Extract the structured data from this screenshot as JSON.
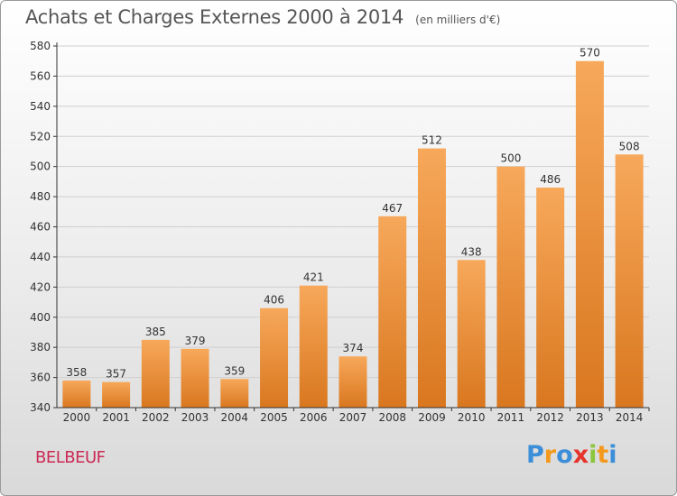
{
  "title": "Achats et Charges Externes 2000 à 2014",
  "unit_label": "(en milliers d'€)",
  "place_name": "BELBEUF",
  "logo": {
    "letters": [
      "P",
      "r",
      "o",
      "x",
      "i",
      "t",
      "i"
    ],
    "colors": [
      "#3b8ed8",
      "#f39a1e",
      "#3b8ed8",
      "#e5342b",
      "#8cc63e",
      "#f39a1e",
      "#3b8ed8"
    ]
  },
  "colors": {
    "bar_light": "#f7a85a",
    "bar_dark": "#d9771f",
    "grid": "#cfcfcf",
    "axis": "#333333"
  },
  "chart_data": {
    "type": "bar",
    "categories": [
      "2000",
      "2001",
      "2002",
      "2003",
      "2004",
      "2005",
      "2006",
      "2007",
      "2008",
      "2009",
      "2010",
      "2011",
      "2012",
      "2013",
      "2014"
    ],
    "values": [
      358,
      357,
      385,
      379,
      359,
      406,
      421,
      374,
      467,
      512,
      438,
      500,
      486,
      570,
      508
    ],
    "title": "Achats et Charges Externes 2000 à 2014",
    "xlabel": "",
    "ylabel": "",
    "ylim": [
      340,
      580
    ],
    "yticks": [
      340,
      360,
      380,
      400,
      420,
      440,
      460,
      480,
      500,
      520,
      540,
      560,
      580
    ],
    "grid": true,
    "data_labels": true
  }
}
